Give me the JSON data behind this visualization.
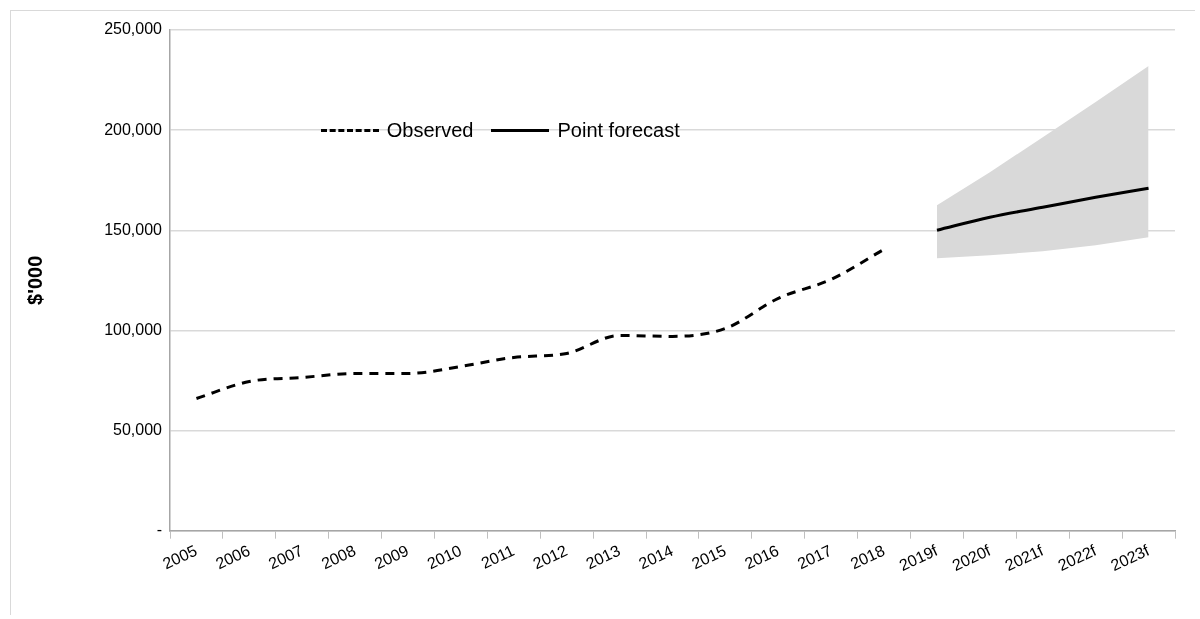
{
  "chart_data": {
    "type": "line",
    "ylabel": "$'000",
    "categories": [
      "2005",
      "2006",
      "2007",
      "2008",
      "2009",
      "2010",
      "2011",
      "2012",
      "2013",
      "2014",
      "2015",
      "2016",
      "2017",
      "2018",
      "2019f",
      "2020f",
      "2021f",
      "2022f",
      "2023f"
    ],
    "series": [
      {
        "name": "Observed",
        "line_style": "dashed",
        "color": "#000000",
        "values": [
          66000,
          74500,
          76500,
          78500,
          78500,
          82000,
          86500,
          88500,
          97500,
          97000,
          101000,
          116000,
          125500,
          140500,
          null,
          null,
          null,
          null,
          null
        ]
      },
      {
        "name": "Point forecast",
        "line_style": "solid",
        "color": "#000000",
        "values": [
          null,
          null,
          null,
          null,
          null,
          null,
          null,
          null,
          null,
          null,
          null,
          null,
          null,
          null,
          150000,
          156500,
          161500,
          166500,
          171000
        ],
        "lower": [
          null,
          null,
          null,
          null,
          null,
          null,
          null,
          null,
          null,
          null,
          null,
          null,
          null,
          null,
          136000,
          137500,
          139500,
          142500,
          146500
        ],
        "upper": [
          null,
          null,
          null,
          null,
          null,
          null,
          null,
          null,
          null,
          null,
          null,
          null,
          null,
          null,
          162500,
          179000,
          196500,
          214000,
          232000
        ]
      }
    ],
    "ylim": [
      0,
      250000
    ],
    "yticks": [
      {
        "value": 0,
        "label": "-"
      },
      {
        "value": 50000,
        "label": "50,000"
      },
      {
        "value": 100000,
        "label": "100,000"
      },
      {
        "value": 150000,
        "label": "150,000"
      },
      {
        "value": 200000,
        "label": "200,000"
      },
      {
        "value": 250000,
        "label": "250,000"
      }
    ],
    "grid": "y",
    "legend": "top left",
    "marker": "none"
  }
}
